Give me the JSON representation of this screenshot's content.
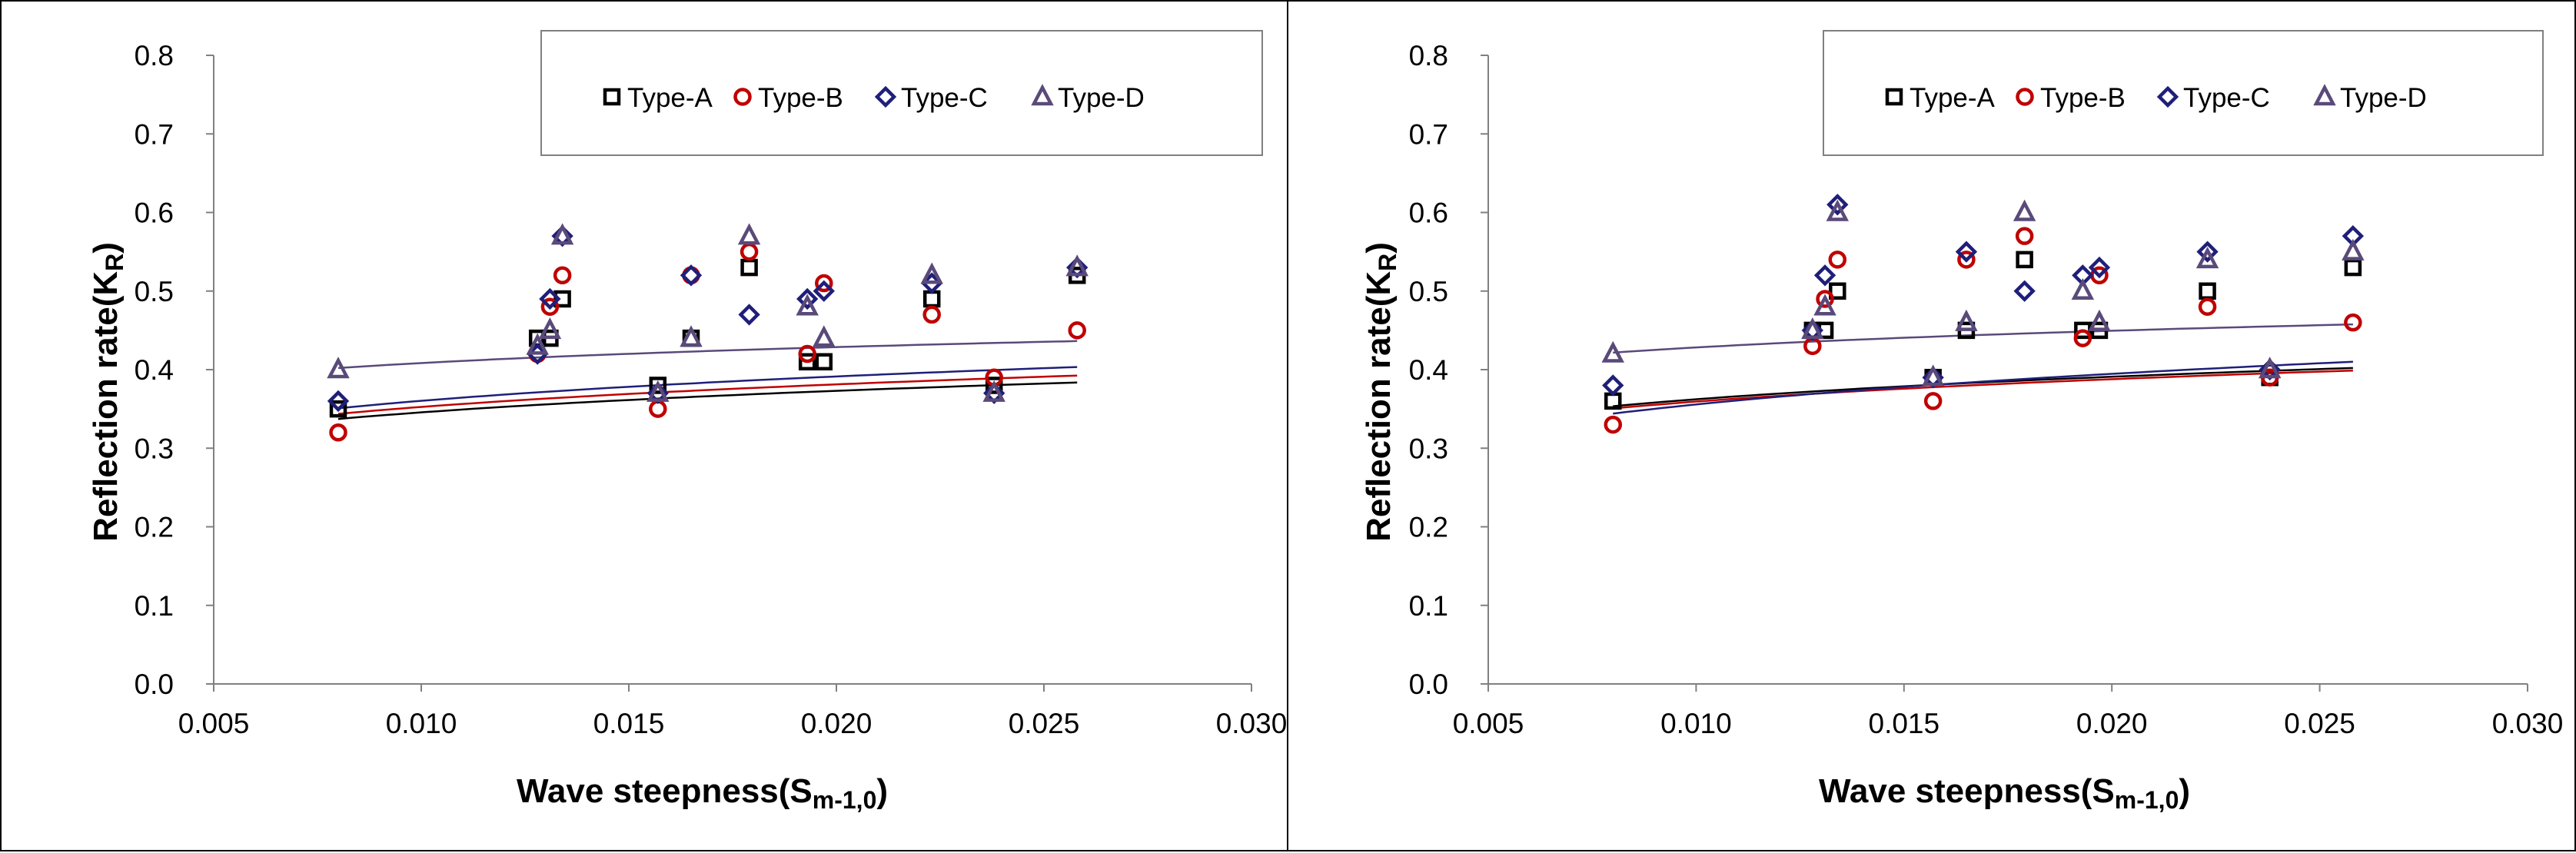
{
  "chart_data": [
    {
      "type": "scatter",
      "title": "",
      "xlabel": "Wave steepness(Sm-1,0)",
      "xlabel_main": "Wave steepness(S",
      "xlabel_sub": "m-1,0",
      "xlabel_end": ")",
      "ylabel": "Reflection rate(KR)",
      "ylabel_main": "Reflection rate(K",
      "ylabel_sub": "R",
      "ylabel_end": ")",
      "xlim": [
        0.005,
        0.03
      ],
      "ylim": [
        0.0,
        0.8
      ],
      "xticks": [
        "0.005",
        "0.010",
        "0.015",
        "0.020",
        "0.025",
        "0.030"
      ],
      "yticks": [
        "0.0",
        "0.1",
        "0.2",
        "0.3",
        "0.4",
        "0.5",
        "0.6",
        "0.7",
        "0.8"
      ],
      "grid": false,
      "legend_position": "top-right",
      "series": [
        {
          "name": "Type-A",
          "marker": "square",
          "color": "#000000",
          "x": [
            0.008,
            0.0128,
            0.0131,
            0.0134,
            0.0157,
            0.0165,
            0.0179,
            0.0193,
            0.0197,
            0.0223,
            0.0238,
            0.0258
          ],
          "y": [
            0.35,
            0.44,
            0.44,
            0.49,
            0.38,
            0.44,
            0.53,
            0.41,
            0.41,
            0.49,
            0.38,
            0.52
          ],
          "fit": {
            "a": 0.5736,
            "b": 0.11,
            "x_from": 0.008,
            "x_to": 0.0258
          }
        },
        {
          "name": "Type-B",
          "marker": "circle",
          "color": "#c00000",
          "x": [
            0.008,
            0.0128,
            0.0131,
            0.0134,
            0.0157,
            0.0165,
            0.0179,
            0.0193,
            0.0197,
            0.0223,
            0.0238,
            0.0258
          ],
          "y": [
            0.32,
            0.42,
            0.48,
            0.52,
            0.35,
            0.52,
            0.55,
            0.42,
            0.51,
            0.47,
            0.39,
            0.45
          ],
          "fit": {
            "a": 0.5932,
            "b": 0.113,
            "x_from": 0.008,
            "x_to": 0.0258
          }
        },
        {
          "name": "Type-C",
          "marker": "diamond",
          "color": "#1f1f7a",
          "x": [
            0.008,
            0.0128,
            0.0131,
            0.0134,
            0.0157,
            0.0165,
            0.0179,
            0.0193,
            0.0197,
            0.0223,
            0.0238,
            0.0258
          ],
          "y": [
            0.36,
            0.42,
            0.49,
            0.57,
            0.37,
            0.52,
            0.47,
            0.49,
            0.5,
            0.51,
            0.37,
            0.53
          ],
          "fit": {
            "a": 0.6233,
            "b": 0.119,
            "x_from": 0.008,
            "x_to": 0.0258
          }
        },
        {
          "name": "Type-D",
          "marker": "triangle",
          "color": "#5a4a7a",
          "x": [
            0.008,
            0.0128,
            0.0131,
            0.0134,
            0.0157,
            0.0165,
            0.0179,
            0.0193,
            0.0197,
            0.0223,
            0.0238,
            0.0258
          ],
          "y": [
            0.4,
            0.43,
            0.45,
            0.57,
            0.37,
            0.44,
            0.57,
            0.48,
            0.44,
            0.52,
            0.37,
            0.53
          ],
          "fit": {
            "a": 0.5637,
            "b": 0.07,
            "x_from": 0.008,
            "x_to": 0.0258
          }
        }
      ]
    },
    {
      "type": "scatter",
      "title": "",
      "xlabel": "Wave steepness(Sm-1,0)",
      "xlabel_main": "Wave steepness(S",
      "xlabel_sub": "m-1,0",
      "xlabel_end": ")",
      "ylabel": "Reflection rate(KR)",
      "ylabel_main": "Reflection rate(K",
      "ylabel_sub": "R",
      "ylabel_end": ")",
      "xlim": [
        0.005,
        0.03
      ],
      "ylim": [
        0.0,
        0.8
      ],
      "xticks": [
        "0.005",
        "0.010",
        "0.015",
        "0.020",
        "0.025",
        "0.030"
      ],
      "yticks": [
        "0.0",
        "0.1",
        "0.2",
        "0.3",
        "0.4",
        "0.5",
        "0.6",
        "0.7",
        "0.8"
      ],
      "grid": false,
      "legend_position": "top-right",
      "series": [
        {
          "name": "Type-A",
          "marker": "square",
          "color": "#000000",
          "x": [
            0.008,
            0.0128,
            0.0131,
            0.0134,
            0.0157,
            0.0165,
            0.0179,
            0.0193,
            0.0197,
            0.0223,
            0.0238,
            0.0258
          ],
          "y": [
            0.36,
            0.45,
            0.45,
            0.5,
            0.39,
            0.45,
            0.54,
            0.45,
            0.45,
            0.5,
            0.39,
            0.53
          ],
          "fit": {
            "a": 0.6012,
            "b": 0.11,
            "x_from": 0.008,
            "x_to": 0.0258
          }
        },
        {
          "name": "Type-B",
          "marker": "circle",
          "color": "#c00000",
          "x": [
            0.008,
            0.0128,
            0.0131,
            0.0134,
            0.0157,
            0.0165,
            0.0179,
            0.0193,
            0.0197,
            0.0223,
            0.0238,
            0.0258
          ],
          "y": [
            0.33,
            0.43,
            0.49,
            0.54,
            0.36,
            0.54,
            0.57,
            0.44,
            0.52,
            0.48,
            0.39,
            0.46
          ],
          "fit": {
            "a": 0.5964,
            "b": 0.11,
            "x_from": 0.008,
            "x_to": 0.0258
          }
        },
        {
          "name": "Type-C",
          "marker": "diamond",
          "color": "#1f1f7a",
          "x": [
            0.008,
            0.0128,
            0.0131,
            0.0134,
            0.0157,
            0.0165,
            0.0179,
            0.0193,
            0.0197,
            0.0223,
            0.0238,
            0.0258
          ],
          "y": [
            0.38,
            0.45,
            0.52,
            0.61,
            0.39,
            0.55,
            0.5,
            0.52,
            0.53,
            0.55,
            0.4,
            0.57
          ],
          "fit": {
            "a": 0.7097,
            "b": 0.15,
            "x_from": 0.008,
            "x_to": 0.0258
          }
        },
        {
          "name": "Type-D",
          "marker": "triangle",
          "color": "#5a4a7a",
          "x": [
            0.008,
            0.0128,
            0.0131,
            0.0134,
            0.0157,
            0.0165,
            0.0179,
            0.0193,
            0.0197,
            0.0223,
            0.0238,
            0.0258
          ],
          "y": [
            0.42,
            0.45,
            0.48,
            0.6,
            0.39,
            0.46,
            0.6,
            0.5,
            0.46,
            0.54,
            0.4,
            0.55
          ],
          "fit": {
            "a": 0.5911,
            "b": 0.07,
            "x_from": 0.008,
            "x_to": 0.0258
          }
        }
      ]
    }
  ]
}
